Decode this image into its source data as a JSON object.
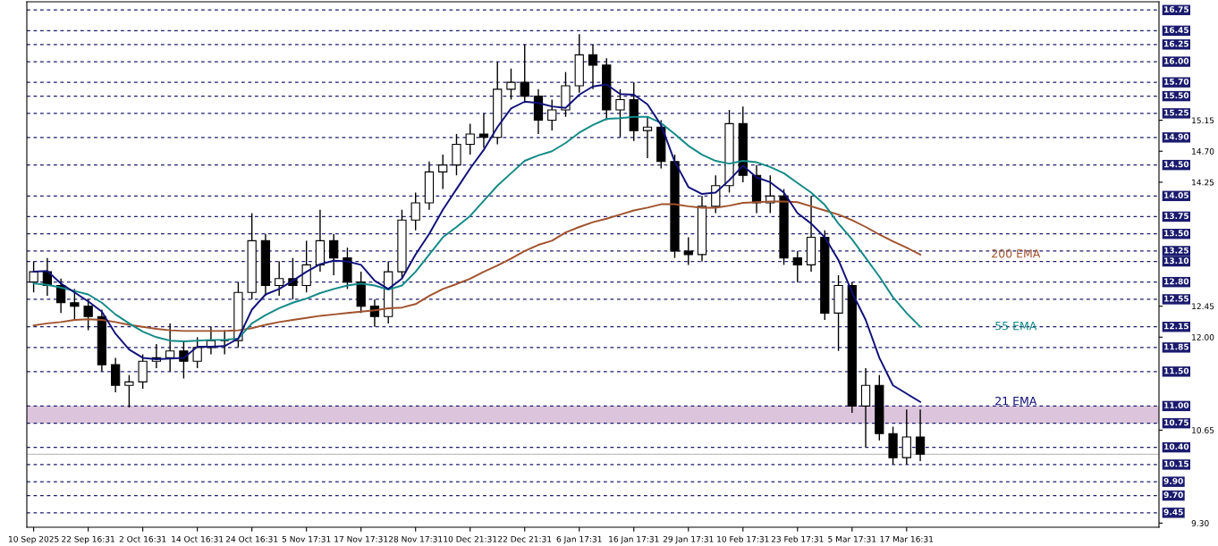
{
  "chart_data": {
    "type": "candlestick",
    "categories": [
      "10 Sep 2025",
      null,
      null,
      null,
      "22 Sep 16:31",
      null,
      null,
      null,
      "2 Oct 16:31",
      null,
      null,
      null,
      "14 Oct 16:31",
      null,
      null,
      null,
      "24 Oct 16:31",
      null,
      null,
      null,
      "5 Nov 17:31",
      null,
      null,
      null,
      "17 Nov 17:31",
      null,
      null,
      null,
      "28 Nov 17:31",
      null,
      null,
      null,
      "10 Dec 21:31",
      null,
      null,
      null,
      "22 Dec 21:31",
      null,
      null,
      null,
      "6 Jan 17:31",
      null,
      null,
      null,
      "16 Jan 17:31",
      null,
      null,
      null,
      "29 Jan 17:31",
      null,
      null,
      null,
      "10 Feb 17:31",
      null,
      null,
      null,
      "23 Feb 17:31",
      null,
      null,
      null,
      "5 Mar 17:31",
      null,
      null,
      null,
      "17 Mar 16:31",
      null,
      null,
      null,
      null,
      null,
      null,
      null,
      null,
      null,
      null,
      null,
      null,
      null,
      null,
      null,
      null,
      null,
      null
    ],
    "ohlc": [
      [
        12.8,
        13.1,
        12.65,
        12.95
      ],
      [
        12.95,
        13.15,
        12.6,
        12.75
      ],
      [
        12.75,
        12.85,
        12.35,
        12.5
      ],
      [
        12.5,
        12.7,
        12.25,
        12.45
      ],
      [
        12.45,
        12.55,
        12.1,
        12.3
      ],
      [
        12.3,
        12.4,
        11.5,
        11.6
      ],
      [
        11.6,
        11.7,
        11.2,
        11.3
      ],
      [
        11.3,
        11.45,
        10.98,
        11.35
      ],
      [
        11.35,
        11.75,
        11.25,
        11.65
      ],
      [
        11.65,
        11.9,
        11.55,
        11.7
      ],
      [
        11.7,
        12.2,
        11.5,
        11.8
      ],
      [
        11.8,
        11.95,
        11.4,
        11.65
      ],
      [
        11.65,
        12.0,
        11.55,
        11.85
      ],
      [
        11.85,
        12.15,
        11.75,
        11.95
      ],
      [
        11.95,
        12.1,
        11.75,
        11.95
      ],
      [
        11.95,
        12.8,
        11.85,
        12.65
      ],
      [
        12.65,
        13.8,
        12.55,
        13.4
      ],
      [
        13.4,
        13.5,
        12.6,
        12.75
      ],
      [
        12.75,
        13.1,
        12.6,
        12.85
      ],
      [
        12.85,
        13.15,
        12.55,
        12.75
      ],
      [
        12.75,
        13.4,
        12.65,
        13.05
      ],
      [
        13.05,
        13.85,
        12.95,
        13.4
      ],
      [
        13.4,
        13.5,
        12.9,
        13.15
      ],
      [
        13.15,
        13.3,
        12.7,
        12.8
      ],
      [
        12.8,
        12.95,
        12.35,
        12.45
      ],
      [
        12.45,
        12.55,
        12.15,
        12.3
      ],
      [
        12.3,
        13.1,
        12.2,
        12.95
      ],
      [
        12.95,
        13.85,
        12.85,
        13.7
      ],
      [
        13.7,
        14.1,
        13.55,
        13.95
      ],
      [
        13.95,
        14.55,
        13.85,
        14.4
      ],
      [
        14.4,
        14.65,
        14.15,
        14.5
      ],
      [
        14.5,
        14.95,
        14.35,
        14.8
      ],
      [
        14.8,
        15.1,
        14.65,
        14.95
      ],
      [
        14.95,
        15.25,
        14.75,
        14.9
      ],
      [
        14.9,
        16.0,
        14.8,
        15.6
      ],
      [
        15.6,
        15.9,
        15.45,
        15.7
      ],
      [
        15.7,
        16.25,
        15.4,
        15.5
      ],
      [
        15.5,
        15.6,
        14.95,
        15.15
      ],
      [
        15.15,
        15.45,
        15.0,
        15.3
      ],
      [
        15.3,
        15.85,
        15.2,
        15.65
      ],
      [
        15.65,
        16.4,
        15.55,
        16.1
      ],
      [
        16.1,
        16.25,
        15.6,
        15.95
      ],
      [
        15.95,
        16.05,
        15.15,
        15.3
      ],
      [
        15.3,
        15.6,
        14.9,
        15.45
      ],
      [
        15.45,
        15.7,
        14.85,
        15.0
      ],
      [
        15.0,
        15.2,
        14.6,
        15.05
      ],
      [
        15.05,
        15.15,
        14.45,
        14.55
      ],
      [
        14.55,
        14.65,
        13.15,
        13.25
      ],
      [
        13.25,
        13.45,
        13.05,
        13.2
      ],
      [
        13.2,
        14.05,
        13.1,
        13.9
      ],
      [
        13.9,
        14.35,
        13.8,
        14.2
      ],
      [
        14.2,
        15.3,
        14.1,
        15.1
      ],
      [
        15.1,
        15.35,
        14.25,
        14.35
      ],
      [
        14.35,
        14.5,
        13.8,
        13.95
      ],
      [
        13.95,
        14.35,
        13.8,
        14.05
      ],
      [
        14.05,
        14.15,
        13.05,
        13.15
      ],
      [
        13.15,
        13.25,
        12.8,
        13.05
      ],
      [
        13.05,
        14.05,
        12.95,
        13.45
      ],
      [
        13.45,
        13.55,
        12.25,
        12.35
      ],
      [
        12.35,
        12.9,
        11.8,
        12.75
      ],
      [
        12.75,
        12.8,
        10.9,
        11.0
      ],
      [
        11.0,
        11.55,
        10.4,
        11.3
      ],
      [
        11.3,
        11.45,
        10.5,
        10.6
      ],
      [
        10.6,
        10.7,
        10.15,
        10.25
      ],
      [
        10.25,
        10.95,
        10.15,
        10.55
      ],
      [
        10.55,
        10.95,
        10.2,
        10.3
      ],
      null,
      null,
      null,
      null,
      null,
      null,
      null,
      null,
      null,
      null,
      null,
      null,
      null,
      null,
      null,
      null,
      null
    ],
    "series": [
      {
        "name": "200 EMA",
        "type": "line",
        "color": "#a0522d",
        "values": [
          12.17,
          12.2,
          12.22,
          12.25,
          12.26,
          12.25,
          12.22,
          12.18,
          12.15,
          12.12,
          12.1,
          12.09,
          12.09,
          12.09,
          12.09,
          12.1,
          12.13,
          12.18,
          12.22,
          12.25,
          12.28,
          12.31,
          12.33,
          12.35,
          12.37,
          12.39,
          12.42,
          12.43,
          12.48,
          12.6,
          12.7,
          12.77,
          12.85,
          12.95,
          13.04,
          13.14,
          13.25,
          13.34,
          13.4,
          13.52,
          13.6,
          13.67,
          13.72,
          13.78,
          13.84,
          13.88,
          13.93,
          13.93,
          13.9,
          13.88,
          13.88,
          13.91,
          13.95,
          13.96,
          13.97,
          13.97,
          13.96,
          13.9,
          13.84,
          13.78,
          13.7,
          13.6,
          13.49,
          13.39,
          13.3,
          13.2,
          null,
          null,
          null,
          null,
          null,
          null,
          null,
          null,
          null,
          null,
          null,
          null,
          null,
          null,
          null,
          null,
          null
        ]
      },
      {
        "name": "55 EMA",
        "type": "line",
        "color": "#138a87",
        "values": [
          12.78,
          12.76,
          12.72,
          12.67,
          12.62,
          12.5,
          12.33,
          12.2,
          12.08,
          12.0,
          11.95,
          11.94,
          11.95,
          11.96,
          11.96,
          11.98,
          12.2,
          12.32,
          12.42,
          12.5,
          12.56,
          12.64,
          12.7,
          12.75,
          12.78,
          12.75,
          12.69,
          12.75,
          12.95,
          13.2,
          13.45,
          13.6,
          13.76,
          13.98,
          14.2,
          14.38,
          14.56,
          14.64,
          14.7,
          14.82,
          14.97,
          15.08,
          15.17,
          15.18,
          15.2,
          15.2,
          15.11,
          14.95,
          14.78,
          14.65,
          14.56,
          14.52,
          14.56,
          14.54,
          14.47,
          14.38,
          14.24,
          14.1,
          13.92,
          13.65,
          13.42,
          13.15,
          12.88,
          12.58,
          12.35,
          12.15,
          null,
          null,
          null,
          null,
          null,
          null,
          null,
          null,
          null,
          null,
          null,
          null,
          null,
          null,
          null,
          null,
          null
        ]
      },
      {
        "name": "21 EMA",
        "type": "line",
        "color": "#10107a",
        "values": [
          12.95,
          12.96,
          12.78,
          12.65,
          12.52,
          12.37,
          12.05,
          11.82,
          11.7,
          11.68,
          11.69,
          11.7,
          11.86,
          11.86,
          11.87,
          11.98,
          12.4,
          12.62,
          12.7,
          12.82,
          12.95,
          13.06,
          13.11,
          13.1,
          13.05,
          12.82,
          12.7,
          12.85,
          13.2,
          13.5,
          13.85,
          14.15,
          14.45,
          14.72,
          15.05,
          15.32,
          15.42,
          15.4,
          15.35,
          15.33,
          15.52,
          15.64,
          15.67,
          15.53,
          15.52,
          15.38,
          15.08,
          14.55,
          14.18,
          14.08,
          14.1,
          14.28,
          14.49,
          14.32,
          14.25,
          14.1,
          13.8,
          13.65,
          13.45,
          13.12,
          12.65,
          12.25,
          11.7,
          11.3,
          11.18,
          11.06,
          null,
          null,
          null,
          null,
          null,
          null,
          null,
          null,
          null,
          null,
          null,
          null,
          null,
          null,
          null,
          null,
          null
        ]
      }
    ],
    "ylim": [
      9.24,
      16.87
    ],
    "yticks": [
      {
        "value": 9.3,
        "label": "9.30"
      },
      {
        "value": 10.65,
        "label": "10.65"
      },
      {
        "value": 12.0,
        "label": "12.00"
      },
      {
        "value": 12.45,
        "label": "12.45"
      },
      {
        "value": 14.25,
        "label": "14.25"
      },
      {
        "value": 14.7,
        "label": "14.70"
      },
      {
        "value": 15.15,
        "label": "15.15"
      }
    ],
    "ref_lines": [
      {
        "axis": "y",
        "value": 16.75,
        "label": "16.75"
      },
      {
        "axis": "y",
        "value": 16.45,
        "label": "16.45"
      },
      {
        "axis": "y",
        "value": 16.25,
        "label": "16.25"
      },
      {
        "axis": "y",
        "value": 16.0,
        "label": "16.00"
      },
      {
        "axis": "y",
        "value": 15.7,
        "label": "15.70"
      },
      {
        "axis": "y",
        "value": 15.5,
        "label": "15.50"
      },
      {
        "axis": "y",
        "value": 15.25,
        "label": "15.25"
      },
      {
        "axis": "y",
        "value": 14.9,
        "label": "14.90"
      },
      {
        "axis": "y",
        "value": 14.5,
        "label": "14.50"
      },
      {
        "axis": "y",
        "value": 14.05,
        "label": "14.05"
      },
      {
        "axis": "y",
        "value": 13.75,
        "label": "13.75"
      },
      {
        "axis": "y",
        "value": 13.5,
        "label": "13.50"
      },
      {
        "axis": "y",
        "value": 13.25,
        "label": "13.25"
      },
      {
        "axis": "y",
        "value": 13.1,
        "label": "13.10"
      },
      {
        "axis": "y",
        "value": 12.8,
        "label": "12.80"
      },
      {
        "axis": "y",
        "value": 12.55,
        "label": "12.55"
      },
      {
        "axis": "y",
        "value": 12.15,
        "label": "12.15"
      },
      {
        "axis": "y",
        "value": 11.85,
        "label": "11.85"
      },
      {
        "axis": "y",
        "value": 11.5,
        "label": "11.50"
      },
      {
        "axis": "y",
        "value": 11.0,
        "label": "11.00"
      },
      {
        "axis": "y",
        "value": 10.75,
        "label": "10.75"
      },
      {
        "axis": "y",
        "value": 10.4,
        "label": "10.40"
      },
      {
        "axis": "y",
        "value": 10.15,
        "label": "10.15"
      },
      {
        "axis": "y",
        "value": 9.9,
        "label": "9.90"
      },
      {
        "axis": "y",
        "value": 9.7,
        "label": "9.70"
      },
      {
        "axis": "y",
        "value": 9.45,
        "label": "9.45"
      },
      {
        "axis": "y",
        "value": 10.3,
        "label": null,
        "color": "#c0c0c0",
        "line_style": "solid"
      }
    ],
    "bands": [
      {
        "axis": "y",
        "from": 10.75,
        "to": 11.0,
        "label": null,
        "color": "#d8bfd8"
      }
    ],
    "line_style": "solid"
  }
}
